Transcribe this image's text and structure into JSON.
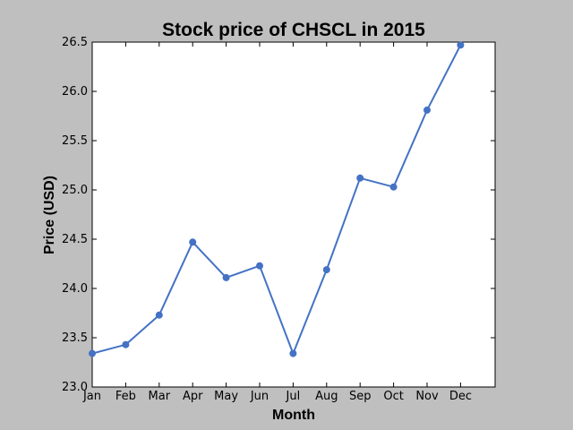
{
  "chart_data": {
    "type": "line",
    "title": "Stock price of CHSCL in 2015",
    "xlabel": "Month",
    "ylabel": "Price (USD)",
    "categories": [
      "Jan",
      "Feb",
      "Mar",
      "Apr",
      "May",
      "Jun",
      "Jul",
      "Aug",
      "Sep",
      "Oct",
      "Nov",
      "Dec"
    ],
    "series": [
      {
        "values": [
          23.34,
          23.43,
          23.73,
          24.47,
          24.11,
          24.23,
          23.34,
          24.19,
          25.12,
          25.03,
          25.81,
          26.47
        ]
      }
    ],
    "ylim": [
      23.0,
      26.5
    ],
    "yticks": [
      "23.0",
      "23.5",
      "24.0",
      "24.5",
      "25.0",
      "25.5",
      "26.0",
      "26.5"
    ],
    "grid": false,
    "line_color": "#4472c4",
    "plot_background": "#ffffff",
    "figure_background": "#bfbfbf"
  }
}
